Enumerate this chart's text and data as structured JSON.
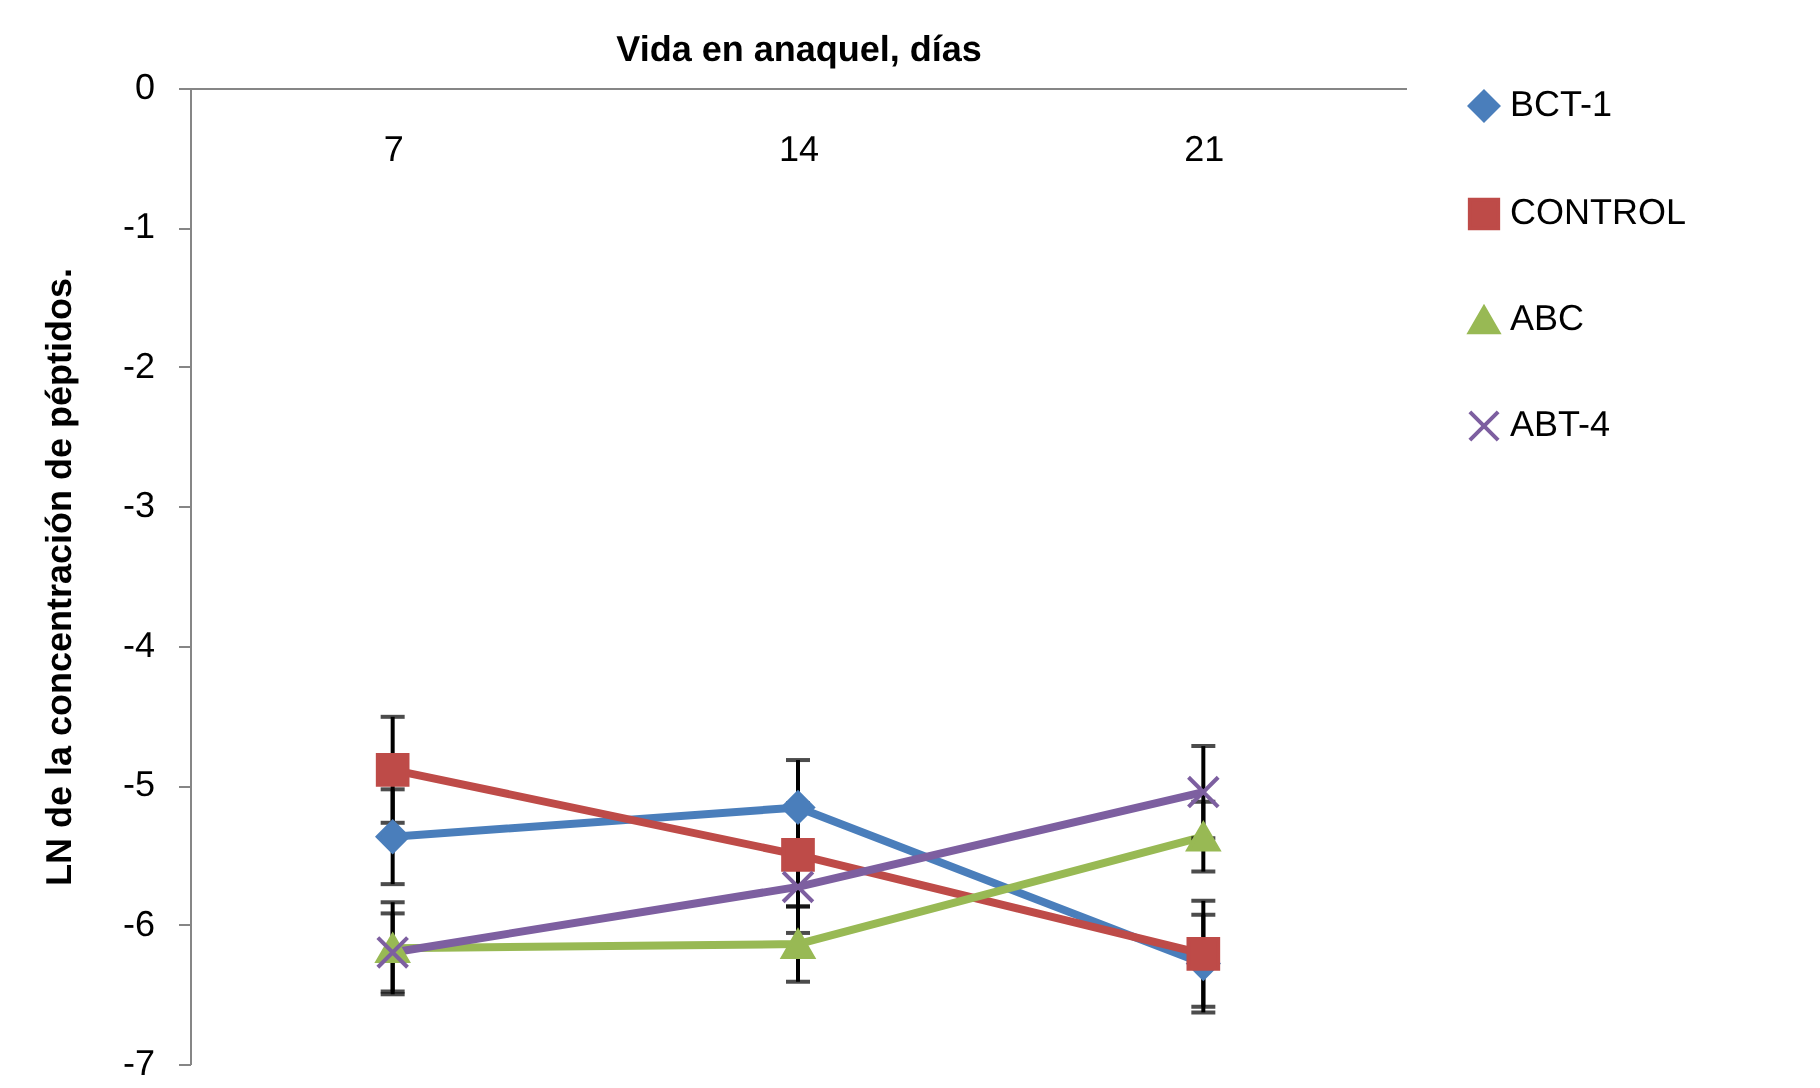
{
  "chart_data": {
    "type": "line",
    "xlabel": "Vida en anaquel, días",
    "ylabel": "LN  de la concentración de péptidos.",
    "categories": [
      "7",
      "14",
      "21"
    ],
    "series": [
      {
        "name": "BCT-1",
        "color": "#4a7ebb",
        "marker": "diamond",
        "values": [
          -5.37,
          -5.16,
          -6.28
        ],
        "errors": [
          0.34,
          0.34,
          0.35
        ]
      },
      {
        "name": "CONTROL",
        "color": "#be4b48",
        "marker": "square",
        "values": [
          -4.89,
          -5.5,
          -6.21
        ],
        "errors": [
          0.38,
          0.37,
          0.38
        ]
      },
      {
        "name": "ABC",
        "color": "#98b954",
        "marker": "triangle",
        "values": [
          -6.17,
          -6.14,
          -5.37
        ],
        "errors": [
          0.33,
          0.27,
          0.25
        ]
      },
      {
        "name": "ABT-4",
        "color": "#7d5fa0",
        "marker": "cross",
        "values": [
          -6.2,
          -5.73,
          -5.05
        ],
        "errors": [
          0.28,
          0.33,
          0.33
        ]
      }
    ],
    "ylim": [
      -7,
      0
    ],
    "yticks": [
      -7,
      -6,
      -5,
      -4,
      -3,
      -2,
      -1,
      0
    ],
    "grid": false,
    "legend": "right",
    "line_style": "solid"
  }
}
